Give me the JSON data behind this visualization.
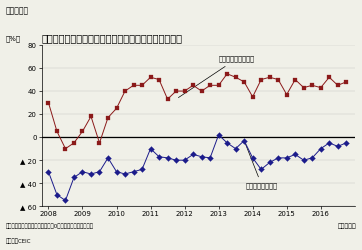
{
  "title": "フィリピンの消費者信頼感指数、ビジネス信頼感指数",
  "fig_label": "（図表５）",
  "ylabel": "（%）",
  "xlabel_note": "（四半期）",
  "note1": "（注）いずれも現状指数。また、0を超えると楽観を表す。",
  "note2": "（資料）CEIC",
  "business_label": "ビジネス信頼感指数",
  "consumer_label": "消費者信頼感指数",
  "ylim": [
    -60,
    80
  ],
  "yticks": [
    -60,
    -40,
    -20,
    0,
    20,
    40,
    60,
    80
  ],
  "business_color": "#8B1A1A",
  "consumer_color": "#1C1C8B",
  "business_x": [
    2008.0,
    2008.25,
    2008.5,
    2008.75,
    2009.0,
    2009.25,
    2009.5,
    2009.75,
    2010.0,
    2010.25,
    2010.5,
    2010.75,
    2011.0,
    2011.25,
    2011.5,
    2011.75,
    2012.0,
    2012.25,
    2012.5,
    2012.75,
    2013.0,
    2013.25,
    2013.5,
    2013.75,
    2014.0,
    2014.25,
    2014.5,
    2014.75,
    2015.0,
    2015.25,
    2015.5,
    2015.75,
    2016.0,
    2016.25,
    2016.5,
    2016.75
  ],
  "business_y": [
    30,
    5,
    -10,
    -5,
    5,
    18,
    -5,
    17,
    25,
    40,
    45,
    45,
    52,
    50,
    33,
    40,
    40,
    45,
    40,
    45,
    45,
    55,
    52,
    48,
    35,
    50,
    52,
    50,
    37,
    50,
    43,
    45,
    43,
    52,
    45,
    48
  ],
  "consumer_x": [
    2008.0,
    2008.25,
    2008.5,
    2008.75,
    2009.0,
    2009.25,
    2009.5,
    2009.75,
    2010.0,
    2010.25,
    2010.5,
    2010.75,
    2011.0,
    2011.25,
    2011.5,
    2011.75,
    2012.0,
    2012.25,
    2012.5,
    2012.75,
    2013.0,
    2013.25,
    2013.5,
    2013.75,
    2014.0,
    2014.25,
    2014.5,
    2014.75,
    2015.0,
    2015.25,
    2015.5,
    2015.75,
    2016.0,
    2016.25,
    2016.5,
    2016.75
  ],
  "consumer_y": [
    -30,
    -50,
    -55,
    -35,
    -30,
    -32,
    -30,
    -18,
    -30,
    -32,
    -30,
    -28,
    -10,
    -17,
    -18,
    -20,
    -20,
    -15,
    -17,
    -18,
    2,
    -5,
    -10,
    -3,
    -18,
    -28,
    -22,
    -18,
    -18,
    -15,
    -20,
    -18,
    -10,
    -5,
    -8,
    -5
  ],
  "xticks": [
    2008,
    2009,
    2010,
    2011,
    2012,
    2013,
    2014,
    2015,
    2016
  ],
  "xlim": [
    2007.8,
    2017.0
  ],
  "marker_size_business": 3.5,
  "marker_size_consumer": 3.0,
  "bg_color": "#f0f0e8"
}
